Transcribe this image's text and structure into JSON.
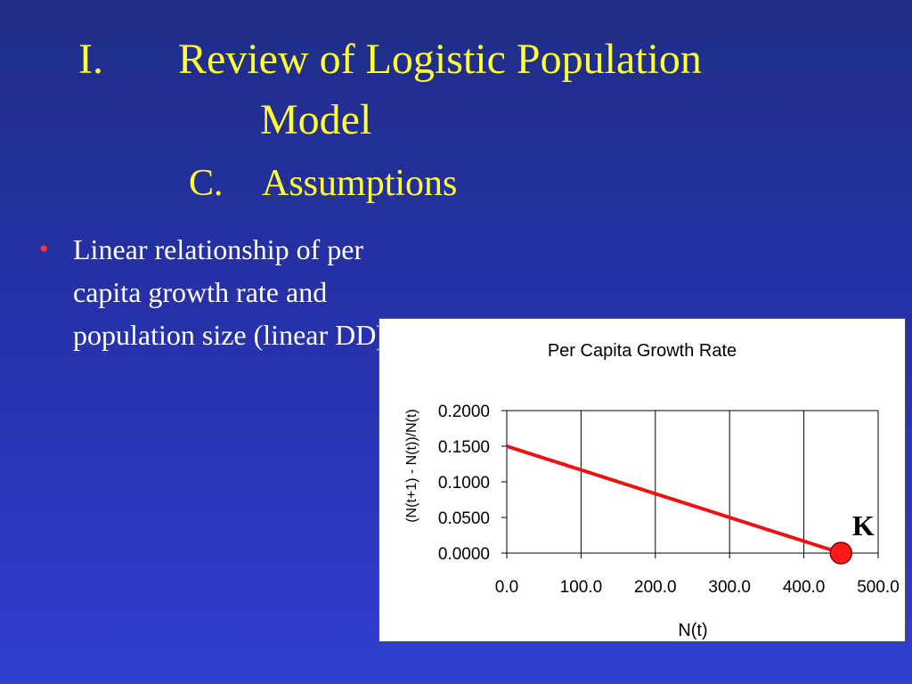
{
  "slide": {
    "heading_number": "I.",
    "heading_text": "Review of Logistic Population",
    "heading_cont": "Model",
    "subheading_number": "C.",
    "subheading_text": "Assumptions"
  },
  "bullets": [
    {
      "marker": "•",
      "text": "Linear relationship of per capita growth rate and population size (linear DD)"
    }
  ],
  "colors": {
    "title": "#ffff33",
    "bullet_text": "#ffffff",
    "bullet_marker": "#ff3333",
    "line": "#ee1111",
    "marker_fill": "#ff1a1a"
  },
  "chart_data": {
    "type": "line",
    "title": "Per Capita Growth Rate",
    "xlabel": "N(t)",
    "ylabel": "(N(t+1) - N(t))/N(t)",
    "xlim": [
      0,
      500
    ],
    "ylim": [
      0,
      0.2
    ],
    "xticks": [
      "0.0",
      "100.0",
      "200.0",
      "300.0",
      "400.0",
      "500.0"
    ],
    "yticks": [
      "0.0000",
      "0.0500",
      "0.1000",
      "0.1500",
      "0.2000"
    ],
    "grid": "vertical",
    "series": [
      {
        "x": [
          0,
          50,
          100,
          150,
          200,
          250,
          300,
          350,
          400,
          450
        ],
        "y": [
          0.15,
          0.1333,
          0.1167,
          0.1,
          0.0833,
          0.0667,
          0.05,
          0.0333,
          0.0167,
          0.0
        ]
      }
    ],
    "annotation": {
      "label": "K",
      "x": 450,
      "y": 0.0
    }
  }
}
